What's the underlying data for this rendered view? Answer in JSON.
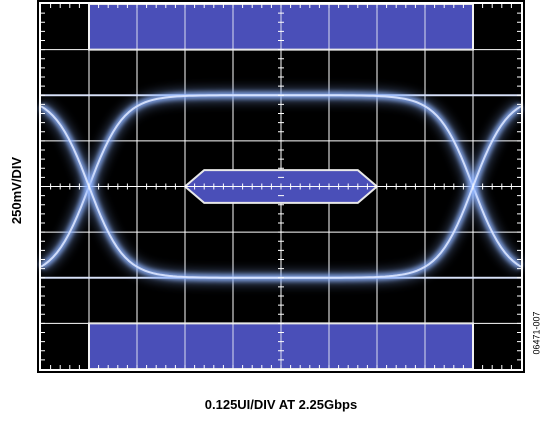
{
  "chart_data": {
    "type": "eye-diagram",
    "title": "",
    "xlabel": "0.125UI/DIV AT 2.25Gbps",
    "ylabel": "250mV/DIV",
    "x_divisions": 10,
    "y_divisions": 8,
    "x_units_per_div": "0.125UI",
    "y_units_per_div": "250mV",
    "xlim_ui": [
      -0.625,
      0.625
    ],
    "ylim_mv": [
      -1000,
      1000
    ],
    "grid": true,
    "eye_levels_mv": {
      "high": 500,
      "low": -500
    },
    "crossings_ui": [
      -0.5,
      0.5
    ],
    "mask_regions": [
      {
        "name": "top-mask",
        "points_ui_mv": [
          [
            -0.5,
            1000
          ],
          [
            0.5,
            1000
          ],
          [
            0.5,
            750
          ],
          [
            -0.5,
            750
          ]
        ]
      },
      {
        "name": "center-mask",
        "points_ui_mv": [
          [
            -0.25,
            0
          ],
          [
            -0.2,
            90
          ],
          [
            0.2,
            90
          ],
          [
            0.25,
            0
          ],
          [
            0.2,
            -90
          ],
          [
            -0.2,
            -90
          ]
        ]
      },
      {
        "name": "bottom-mask",
        "points_ui_mv": [
          [
            -0.5,
            -750
          ],
          [
            0.5,
            -750
          ],
          [
            0.5,
            -1000
          ],
          [
            -0.5,
            -1000
          ]
        ]
      }
    ]
  },
  "figure_id": "06471-007",
  "colors": {
    "background": "#000000",
    "grid": "#ffffff",
    "mask_fill": "#4a4fb8",
    "mask_edge": "#e8e8e8",
    "trace": "#8fb4ff"
  }
}
